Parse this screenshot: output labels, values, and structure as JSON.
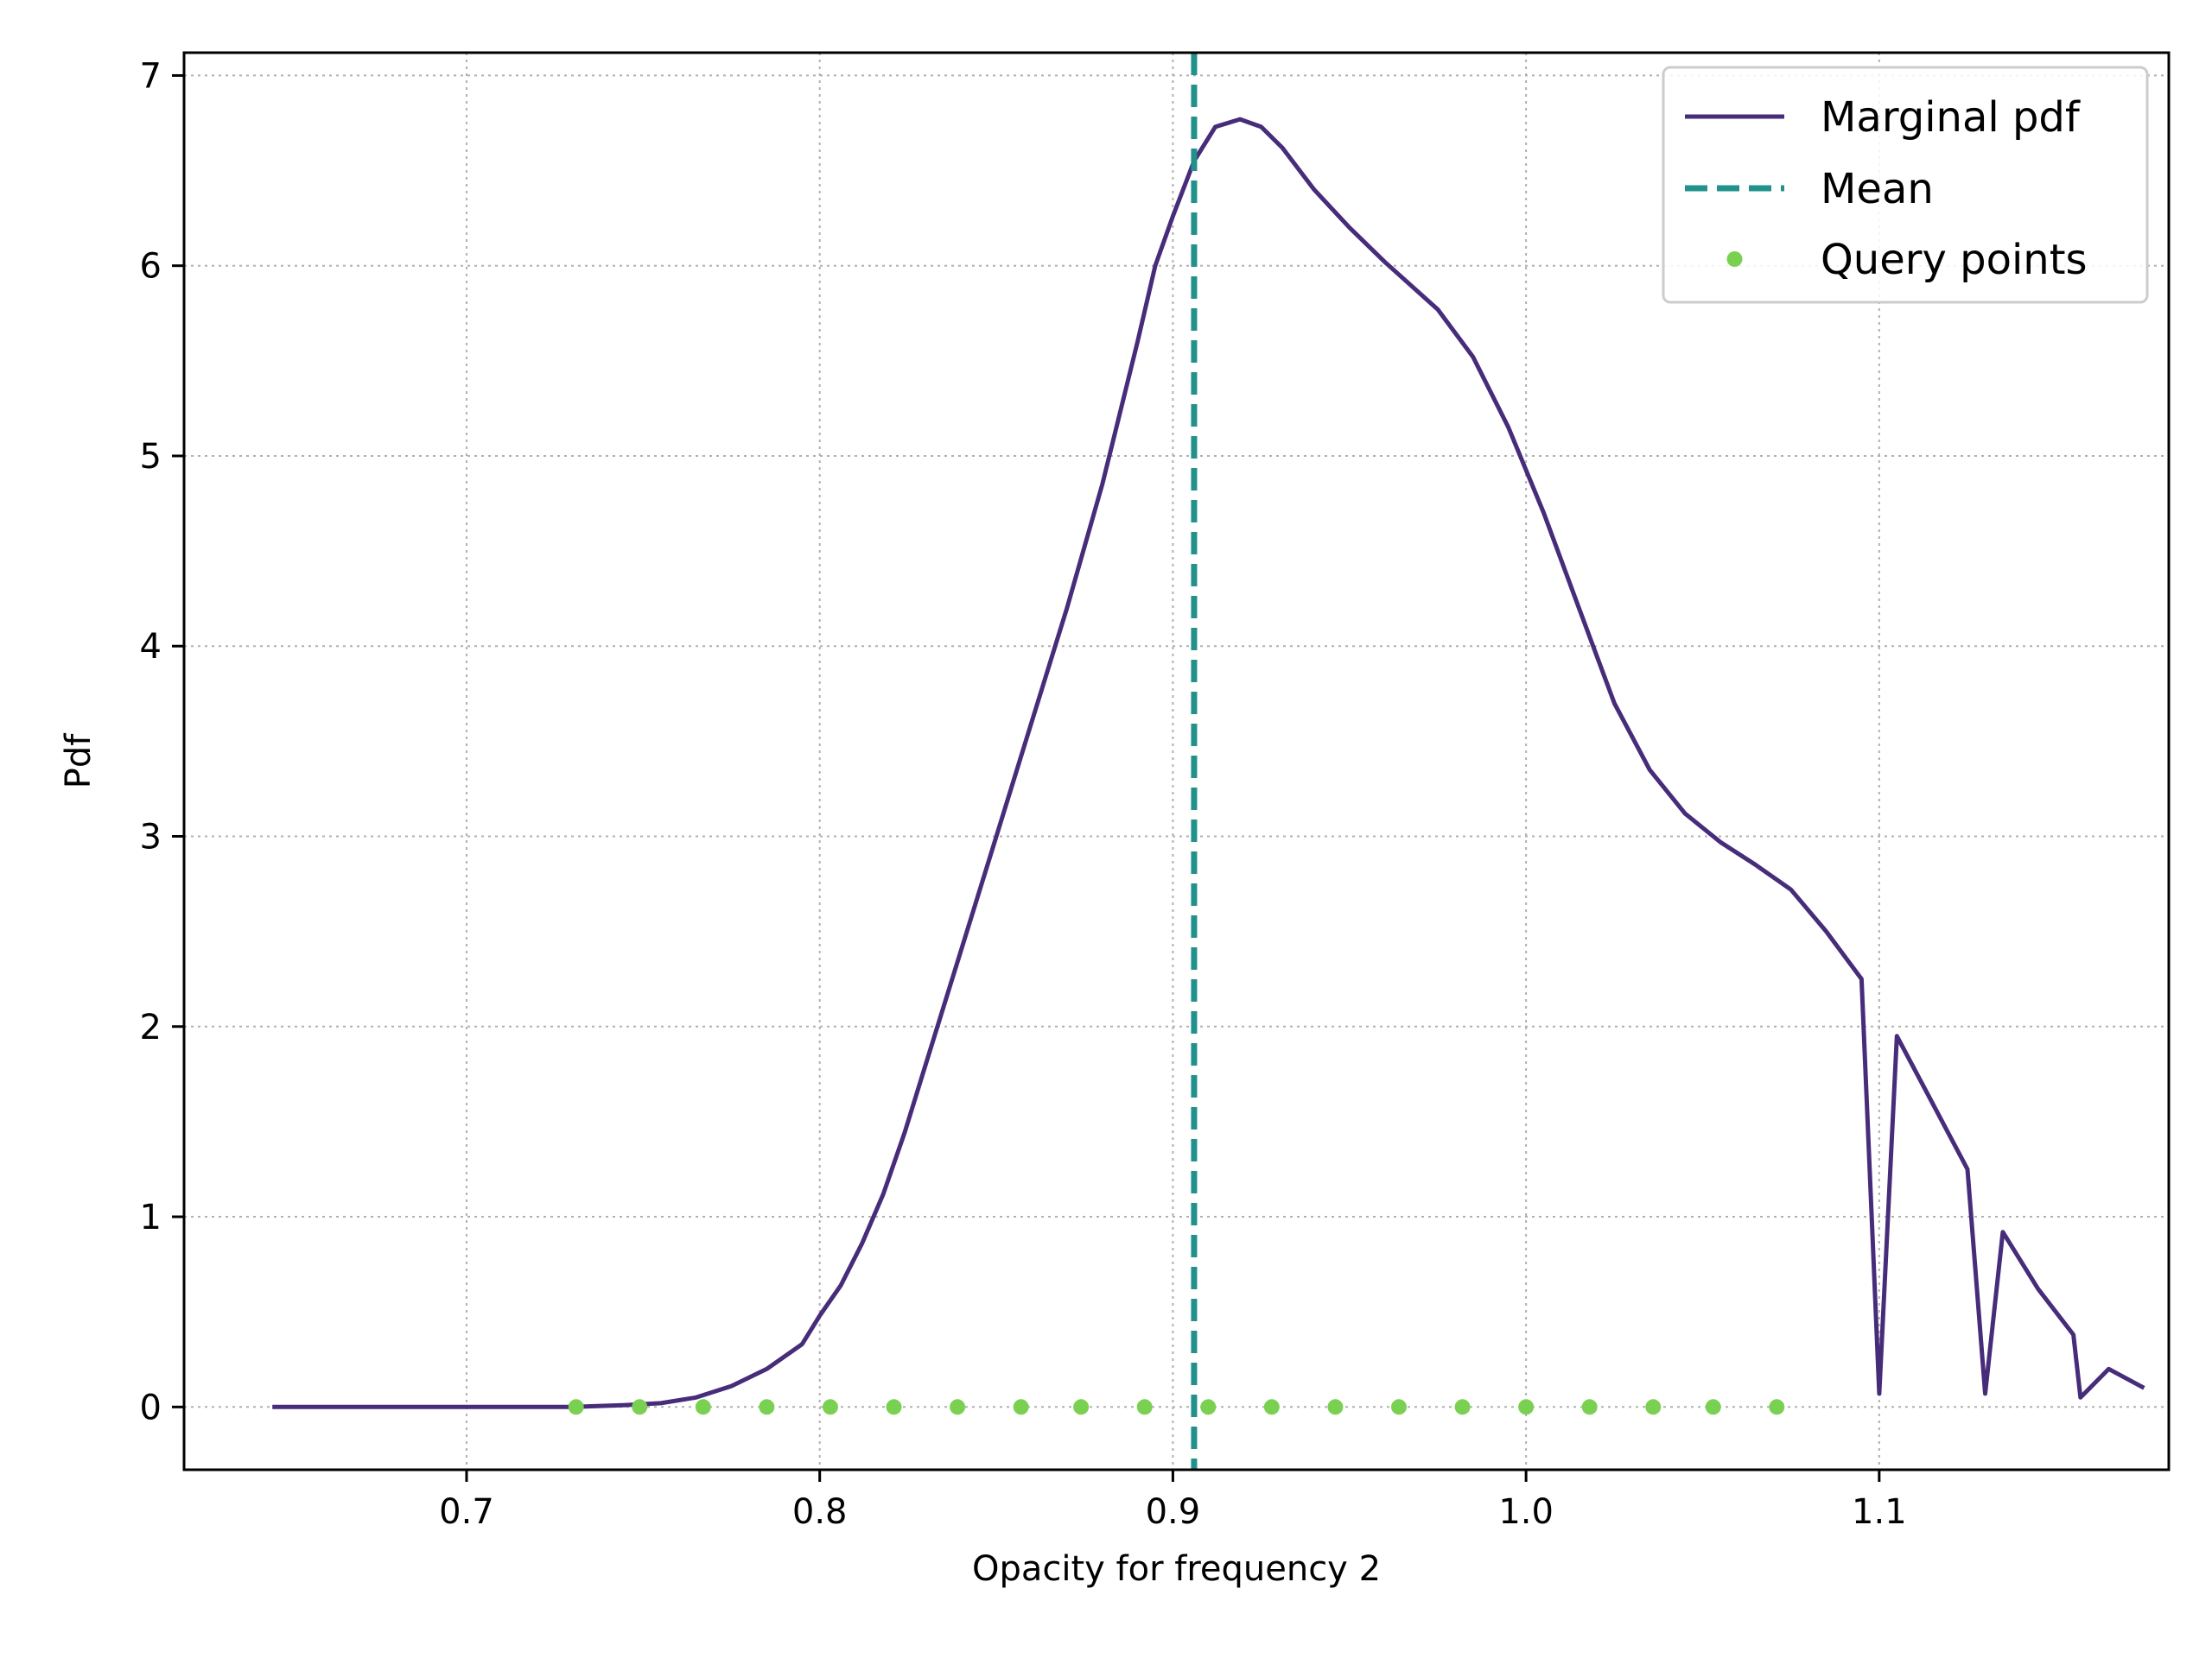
{
  "chart_data": {
    "type": "line",
    "title": "",
    "xlabel": "Opacity for frequency 2",
    "ylabel": "Pdf",
    "xlim": [
      0.62,
      1.182
    ],
    "ylim": [
      -0.33,
      7.12
    ],
    "grid": true,
    "legend_position": "top-right",
    "x_ticks": [
      0.7,
      0.8,
      0.9,
      1.0,
      1.1
    ],
    "x_tick_labels": [
      "0.7",
      "0.8",
      "0.9",
      "1.0",
      "1.1"
    ],
    "y_ticks": [
      0,
      1,
      2,
      3,
      4,
      5,
      6,
      7
    ],
    "y_tick_labels": [
      "0",
      "1",
      "2",
      "3",
      "4",
      "5",
      "6",
      "7"
    ],
    "series": [
      {
        "name": "Marginal pdf",
        "kind": "line",
        "color": "#472c7a",
        "points": [
          [
            0.645,
            0.0
          ],
          [
            0.7,
            0.0
          ],
          [
            0.73,
            0.0
          ],
          [
            0.745,
            0.01
          ],
          [
            0.755,
            0.02
          ],
          [
            0.765,
            0.05
          ],
          [
            0.775,
            0.11
          ],
          [
            0.785,
            0.2
          ],
          [
            0.795,
            0.33
          ],
          [
            0.8,
            0.48
          ],
          [
            0.806,
            0.64
          ],
          [
            0.812,
            0.86
          ],
          [
            0.818,
            1.12
          ],
          [
            0.824,
            1.44
          ],
          [
            0.83,
            1.8
          ],
          [
            0.84,
            2.4
          ],
          [
            0.85,
            3.0
          ],
          [
            0.86,
            3.6
          ],
          [
            0.87,
            4.2
          ],
          [
            0.88,
            4.85
          ],
          [
            0.89,
            5.6
          ],
          [
            0.895,
            6.0
          ],
          [
            0.9,
            6.26
          ],
          [
            0.906,
            6.55
          ],
          [
            0.912,
            6.73
          ],
          [
            0.919,
            6.77
          ],
          [
            0.925,
            6.73
          ],
          [
            0.931,
            6.62
          ],
          [
            0.94,
            6.4
          ],
          [
            0.95,
            6.2
          ],
          [
            0.96,
            6.02
          ],
          [
            0.975,
            5.77
          ],
          [
            0.985,
            5.52
          ],
          [
            0.995,
            5.15
          ],
          [
            1.005,
            4.7
          ],
          [
            1.015,
            4.2
          ],
          [
            1.025,
            3.7
          ],
          [
            1.035,
            3.35
          ],
          [
            1.045,
            3.12
          ],
          [
            1.055,
            2.97
          ],
          [
            1.065,
            2.85
          ],
          [
            1.075,
            2.72
          ],
          [
            1.085,
            2.5
          ],
          [
            1.095,
            2.25
          ],
          [
            1.105,
            1.95
          ],
          [
            1.115,
            1.6
          ],
          [
            1.125,
            1.25
          ],
          [
            1.135,
            0.92
          ],
          [
            1.145,
            0.62
          ],
          [
            1.155,
            0.38
          ],
          [
            1.165,
            0.2
          ],
          [
            1.175,
            0.1
          ],
          [
            1.1,
            0.07
          ],
          [
            1.13,
            0.07
          ],
          [
            1.157,
            0.05
          ]
        ]
      },
      {
        "name": "Mean",
        "kind": "vline",
        "color": "#21918c",
        "x": 0.906
      },
      {
        "name": "Query points",
        "kind": "scatter",
        "color": "#7ad151",
        "x": [
          0.731,
          0.749,
          0.767,
          0.785,
          0.803,
          0.821,
          0.839,
          0.857,
          0.874,
          0.892,
          0.91,
          0.928,
          0.946,
          0.964,
          0.982,
          1.0,
          1.018,
          1.036,
          1.053,
          1.071
        ],
        "y": [
          0,
          0,
          0,
          0,
          0,
          0,
          0,
          0,
          0,
          0,
          0,
          0,
          0,
          0,
          0,
          0,
          0,
          0,
          0,
          0
        ]
      }
    ]
  }
}
